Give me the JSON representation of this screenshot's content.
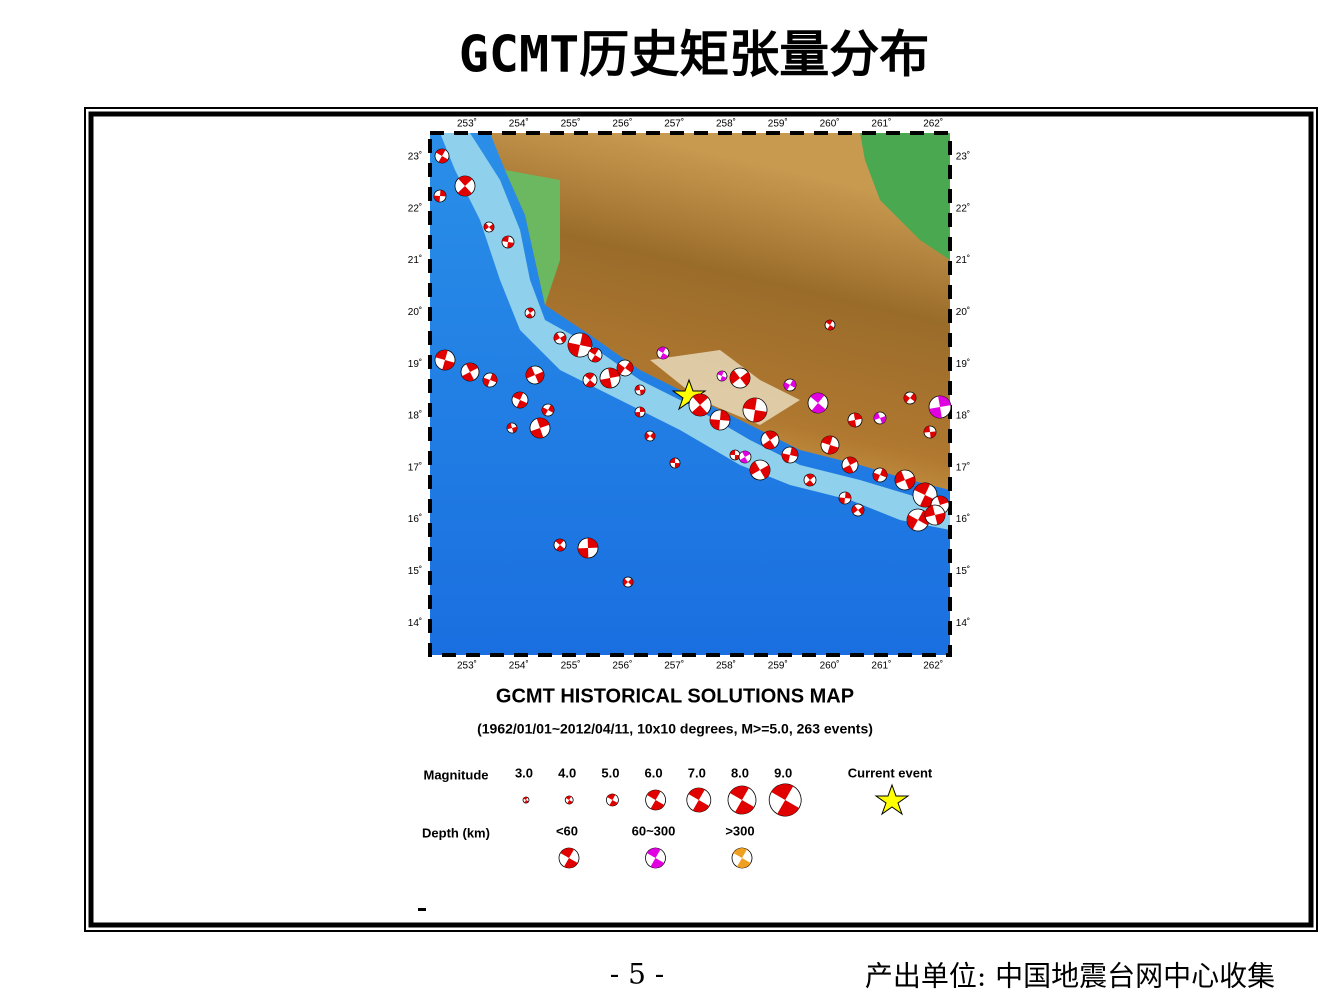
{
  "header": {
    "title": "GCMT历史矩张量分布"
  },
  "map": {
    "lon_labels": [
      "253˚",
      "254˚",
      "255˚",
      "256˚",
      "257˚",
      "258˚",
      "259˚",
      "260˚",
      "261˚",
      "262˚"
    ],
    "lat_labels": [
      "23˚",
      "22˚",
      "21˚",
      "20˚",
      "19˚",
      "18˚",
      "17˚",
      "16˚",
      "15˚",
      "14˚"
    ],
    "title": "GCMT HISTORICAL SOLUTIONS MAP",
    "subtitle": "(1962/01/01~2012/04/11, 10x10 degrees, M>=5.0, 263 events)"
  },
  "legend": {
    "magnitude_label": "Magnitude",
    "magnitudes": [
      "3.0",
      "4.0",
      "5.0",
      "6.0",
      "7.0",
      "8.0",
      "9.0"
    ],
    "current_event": "Current event",
    "depth_label": "Depth (km)",
    "depths": [
      "<60",
      "60~300",
      ">300"
    ]
  },
  "footer": {
    "page": "- 5 -",
    "source": "产出单位: 中国地震台网中心收集"
  }
}
